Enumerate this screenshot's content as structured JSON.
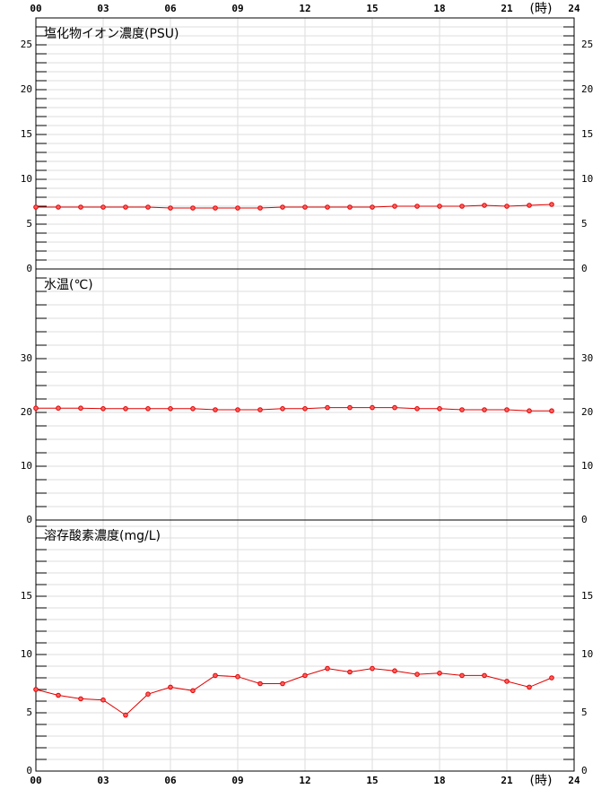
{
  "chart_data": [
    {
      "type": "line",
      "title": "塩化物イオン濃度(PSU)",
      "xlabel": "(時)",
      "x": [
        0,
        1,
        2,
        3,
        4,
        5,
        6,
        7,
        8,
        9,
        10,
        11,
        12,
        13,
        14,
        15,
        16,
        17,
        18,
        19,
        20,
        21,
        22,
        23
      ],
      "values": [
        6.9,
        6.9,
        6.9,
        6.9,
        6.9,
        6.9,
        6.8,
        6.8,
        6.8,
        6.8,
        6.8,
        6.9,
        6.9,
        6.9,
        6.9,
        6.9,
        7.0,
        7.0,
        7.0,
        7.0,
        7.1,
        7.0,
        7.1,
        7.2
      ],
      "color": "#e00000",
      "xlim": [
        0,
        24
      ],
      "xticks": [
        {
          "value": 0,
          "label": "00"
        },
        {
          "value": 3,
          "label": "03"
        },
        {
          "value": 6,
          "label": "06"
        },
        {
          "value": 9,
          "label": "09"
        },
        12,
        15,
        18,
        21,
        24
      ],
      "ylim": [
        0,
        28
      ],
      "yticks": [
        0,
        5,
        10,
        15,
        20,
        25
      ],
      "yminor_step": 1,
      "grid": true
    },
    {
      "type": "line",
      "title": "水温(℃)",
      "x": [
        0,
        1,
        2,
        3,
        4,
        5,
        6,
        7,
        8,
        9,
        10,
        11,
        12,
        13,
        14,
        15,
        16,
        17,
        18,
        19,
        20,
        21,
        22,
        23
      ],
      "values": [
        20.8,
        20.8,
        20.8,
        20.7,
        20.7,
        20.7,
        20.7,
        20.7,
        20.5,
        20.5,
        20.5,
        20.7,
        20.7,
        20.9,
        20.9,
        20.9,
        20.9,
        20.7,
        20.7,
        20.5,
        20.5,
        20.5,
        20.3,
        20.3
      ],
      "color": "#e00000",
      "xlim": [
        0,
        24
      ],
      "xticks": [
        {
          "value": 0,
          "label": "00"
        },
        {
          "value": 3,
          "label": "03"
        },
        {
          "value": 6,
          "label": "06"
        },
        {
          "value": 9,
          "label": "09"
        },
        12,
        15,
        18,
        21,
        24
      ],
      "ylim": [
        0,
        46.67
      ],
      "yticks": [
        0,
        10,
        20,
        30
      ],
      "yminor_step": 2.5,
      "grid": true
    },
    {
      "type": "line",
      "title": "溶存酸素濃度(mg/L)",
      "xlabel": "(時)",
      "x": [
        0,
        1,
        2,
        3,
        4,
        5,
        6,
        7,
        8,
        9,
        10,
        11,
        12,
        13,
        14,
        15,
        16,
        17,
        18,
        19,
        20,
        21,
        22,
        23
      ],
      "values": [
        7.0,
        6.5,
        6.2,
        6.1,
        4.8,
        6.6,
        7.2,
        6.9,
        8.2,
        8.1,
        7.5,
        7.5,
        8.2,
        8.8,
        8.5,
        8.8,
        8.6,
        8.3,
        8.4,
        8.2,
        8.2,
        7.7,
        7.2,
        8.0
      ],
      "color": "#e00000",
      "xlim": [
        0,
        24
      ],
      "xticks": [
        {
          "value": 0,
          "label": "00"
        },
        {
          "value": 3,
          "label": "03"
        },
        {
          "value": 6,
          "label": "06"
        },
        {
          "value": 9,
          "label": "09"
        },
        12,
        15,
        18,
        21,
        24
      ],
      "ylim": [
        0,
        21.54
      ],
      "yticks": [
        0,
        5,
        10,
        15
      ],
      "yminor_step": 1,
      "grid": true
    }
  ]
}
